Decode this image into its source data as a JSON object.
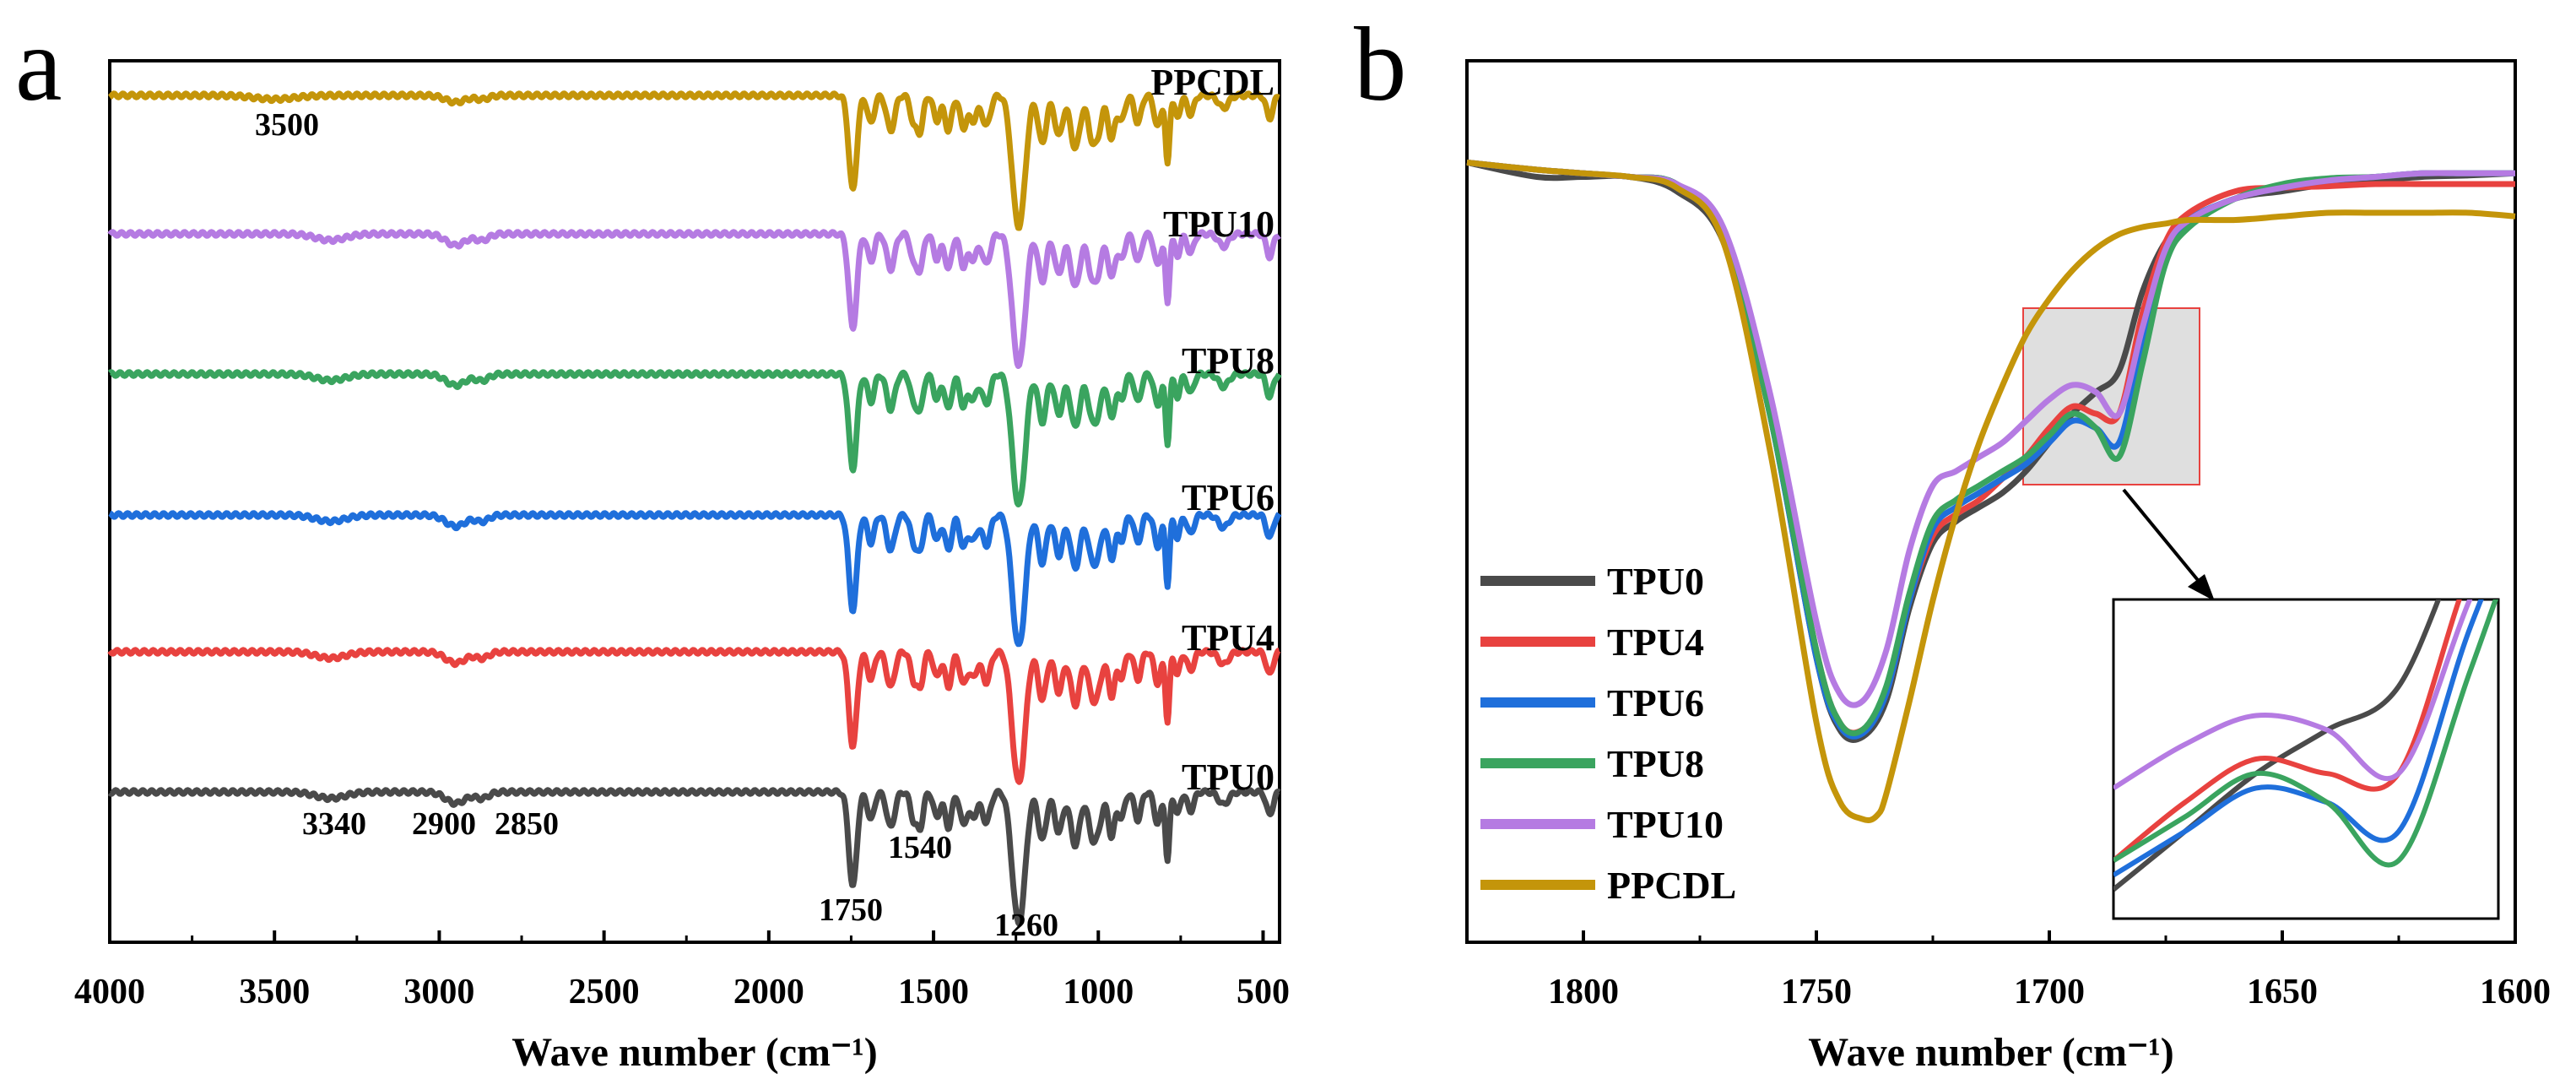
{
  "colors": {
    "TPU0": "#4a4a4a",
    "TPU4": "#e8423f",
    "TPU6": "#1f6fdb",
    "TPU8": "#3aa45f",
    "TPU10": "#b57be2",
    "PPCDL": "#c4950a"
  },
  "chart_data": [
    {
      "panel": "a",
      "type": "line",
      "title": "",
      "xlabel": "Wave number (cm⁻¹)",
      "ylabel": "",
      "xlim": [
        4000,
        450
      ],
      "xticks": [
        4000,
        3500,
        3000,
        2500,
        2000,
        1500,
        1000,
        500
      ],
      "xtick_labels": [
        "4000",
        "3500",
        "3000",
        "2500",
        "2000",
        "1500",
        "1000",
        "500"
      ],
      "series_labels": [
        "PPCDL",
        "TPU10",
        "TPU8",
        "TPU6",
        "TPU4",
        "TPU0"
      ],
      "annotations": [
        "3500",
        "3340",
        "2900",
        "2850",
        "1540",
        "1750",
        "1260"
      ],
      "series": [
        {
          "name": "TPU0",
          "offset": 0
        },
        {
          "name": "TPU4",
          "offset": 1
        },
        {
          "name": "TPU6",
          "offset": 2
        },
        {
          "name": "TPU8",
          "offset": 3
        },
        {
          "name": "TPU10",
          "offset": 4
        },
        {
          "name": "PPCDL",
          "offset": 5
        }
      ]
    },
    {
      "panel": "b",
      "type": "line",
      "title": "",
      "xlabel": "Wave number (cm⁻¹)",
      "ylabel": "",
      "xlim": [
        1825,
        1600
      ],
      "xticks": [
        1800,
        1750,
        1700,
        1650,
        1600
      ],
      "xtick_labels": [
        "1800",
        "1750",
        "1700",
        "1650",
        "1600"
      ],
      "legend": [
        "TPU0",
        "TPU4",
        "TPU6",
        "TPU8",
        "TPU10",
        "PPCDL"
      ],
      "legend_position": "bottom-left",
      "inset": "zoom of 1705-1680 cm-1 region",
      "series": [
        {
          "name": "TPU0",
          "x": [
            1825,
            1810,
            1800,
            1790,
            1780,
            1770,
            1760,
            1750,
            1745,
            1740,
            1735,
            1730,
            1725,
            1720,
            1715,
            1710,
            1705,
            1700,
            1695,
            1690,
            1685,
            1680,
            1675,
            1670,
            1660,
            1650,
            1640,
            1630,
            1620,
            1610,
            1600
          ],
          "y": [
            0.95,
            0.93,
            0.93,
            0.93,
            0.91,
            0.84,
            0.6,
            0.26,
            0.16,
            0.15,
            0.2,
            0.33,
            0.42,
            0.45,
            0.47,
            0.49,
            0.52,
            0.56,
            0.6,
            0.63,
            0.66,
            0.77,
            0.84,
            0.87,
            0.9,
            0.91,
            0.92,
            0.925,
            0.93,
            0.932,
            0.935
          ]
        },
        {
          "name": "TPU4",
          "x": [
            1825,
            1810,
            1800,
            1790,
            1780,
            1770,
            1760,
            1750,
            1745,
            1740,
            1735,
            1730,
            1725,
            1720,
            1715,
            1710,
            1705,
            1700,
            1695,
            1690,
            1685,
            1680,
            1675,
            1670,
            1660,
            1650,
            1640,
            1630,
            1620,
            1610,
            1600
          ],
          "y": [
            0.95,
            0.94,
            0.935,
            0.93,
            0.92,
            0.85,
            0.6,
            0.27,
            0.17,
            0.16,
            0.21,
            0.34,
            0.43,
            0.46,
            0.48,
            0.51,
            0.54,
            0.58,
            0.61,
            0.6,
            0.6,
            0.74,
            0.84,
            0.88,
            0.91,
            0.915,
            0.917,
            0.92,
            0.92,
            0.92,
            0.92
          ]
        },
        {
          "name": "TPU6",
          "x": [
            1825,
            1810,
            1800,
            1790,
            1780,
            1770,
            1760,
            1750,
            1745,
            1740,
            1735,
            1730,
            1725,
            1720,
            1715,
            1710,
            1705,
            1700,
            1695,
            1690,
            1685,
            1680,
            1675,
            1670,
            1660,
            1650,
            1640,
            1630,
            1620,
            1610,
            1600
          ],
          "y": [
            0.95,
            0.94,
            0.935,
            0.93,
            0.92,
            0.85,
            0.6,
            0.26,
            0.165,
            0.155,
            0.21,
            0.34,
            0.44,
            0.47,
            0.49,
            0.51,
            0.53,
            0.56,
            0.59,
            0.58,
            0.56,
            0.7,
            0.82,
            0.87,
            0.9,
            0.915,
            0.925,
            0.93,
            0.935,
            0.935,
            0.935
          ]
        },
        {
          "name": "TPU8",
          "x": [
            1825,
            1810,
            1800,
            1790,
            1780,
            1770,
            1760,
            1750,
            1745,
            1740,
            1735,
            1730,
            1725,
            1720,
            1715,
            1710,
            1705,
            1700,
            1695,
            1690,
            1685,
            1680,
            1675,
            1670,
            1660,
            1650,
            1640,
            1630,
            1620,
            1610,
            1600
          ],
          "y": [
            0.95,
            0.94,
            0.935,
            0.93,
            0.92,
            0.85,
            0.6,
            0.27,
            0.17,
            0.16,
            0.22,
            0.35,
            0.45,
            0.48,
            0.5,
            0.52,
            0.54,
            0.57,
            0.6,
            0.58,
            0.54,
            0.67,
            0.81,
            0.86,
            0.9,
            0.92,
            0.928,
            0.93,
            0.935,
            0.935,
            0.935
          ]
        },
        {
          "name": "TPU10",
          "x": [
            1825,
            1810,
            1800,
            1790,
            1780,
            1770,
            1760,
            1750,
            1745,
            1740,
            1735,
            1730,
            1725,
            1720,
            1715,
            1710,
            1705,
            1700,
            1695,
            1690,
            1685,
            1680,
            1675,
            1670,
            1660,
            1650,
            1640,
            1630,
            1620,
            1610,
            1600
          ],
          "y": [
            0.95,
            0.94,
            0.935,
            0.93,
            0.92,
            0.86,
            0.63,
            0.31,
            0.21,
            0.2,
            0.27,
            0.41,
            0.5,
            0.52,
            0.54,
            0.56,
            0.59,
            0.62,
            0.64,
            0.63,
            0.6,
            0.72,
            0.83,
            0.87,
            0.9,
            0.915,
            0.925,
            0.93,
            0.935,
            0.935,
            0.935
          ]
        },
        {
          "name": "PPCDL",
          "x": [
            1825,
            1810,
            1800,
            1790,
            1780,
            1770,
            1760,
            1750,
            1745,
            1740,
            1737,
            1735,
            1730,
            1725,
            1720,
            1715,
            1710,
            1705,
            1700,
            1695,
            1690,
            1685,
            1680,
            1675,
            1670,
            1660,
            1650,
            1640,
            1630,
            1620,
            1610,
            1600
          ],
          "y": [
            0.95,
            0.94,
            0.935,
            0.93,
            0.915,
            0.84,
            0.55,
            0.17,
            0.06,
            0.035,
            0.04,
            0.07,
            0.2,
            0.34,
            0.46,
            0.56,
            0.64,
            0.71,
            0.76,
            0.8,
            0.83,
            0.85,
            0.86,
            0.865,
            0.87,
            0.87,
            0.875,
            0.88,
            0.88,
            0.88,
            0.88,
            0.875
          ]
        }
      ]
    }
  ]
}
